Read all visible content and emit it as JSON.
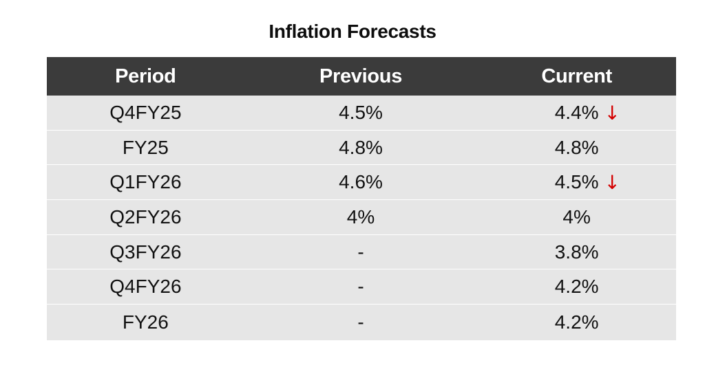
{
  "title": "Inflation Forecasts",
  "columns": [
    "Period",
    "Previous",
    "Current"
  ],
  "rows": [
    {
      "period": "Q4FY25",
      "previous": "4.5%",
      "current": "4.4%",
      "arrow": "↓"
    },
    {
      "period": "FY25",
      "previous": "4.8%",
      "current": "4.8%",
      "arrow": ""
    },
    {
      "period": "Q1FY26",
      "previous": "4.6%",
      "current": "4.5%",
      "arrow": "↓"
    },
    {
      "period": "Q2FY26",
      "previous": "4%",
      "current": "4%",
      "arrow": ""
    },
    {
      "period": "Q3FY26",
      "previous": "-",
      "current": "3.8%",
      "arrow": ""
    },
    {
      "period": "Q4FY26",
      "previous": "-",
      "current": "4.2%",
      "arrow": ""
    },
    {
      "period": "FY26",
      "previous": "-",
      "current": "4.2%",
      "arrow": ""
    }
  ],
  "colors": {
    "header_bg": "#3b3b3b",
    "row_bg": "#e6e6e6",
    "down_arrow": "#d40000"
  }
}
